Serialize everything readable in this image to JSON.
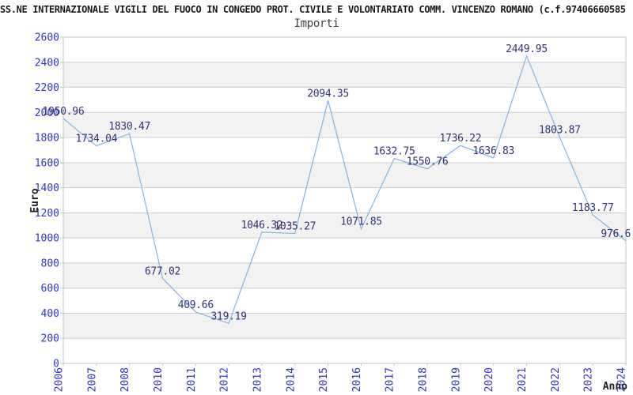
{
  "chart_data": {
    "type": "line",
    "title": "SS.NE INTERNAZIONALE VIGILI DEL FUOCO IN CONGEDO PROT. CIVILE E VOLONTARIATO COMM. VINCENZO ROMANO (c.f.97406660585",
    "subtitle": "Importi",
    "xlabel": "Anno",
    "ylabel": "Euro",
    "categories": [
      "2006",
      "2007",
      "2008",
      "2010",
      "2011",
      "2012",
      "2013",
      "2014",
      "2015",
      "2016",
      "2017",
      "2018",
      "2019",
      "2020",
      "2021",
      "2022",
      "2023",
      "2024"
    ],
    "values": [
      1950.96,
      1734.04,
      1830.47,
      677.02,
      409.66,
      319.19,
      1046.32,
      1035.27,
      2094.35,
      1071.85,
      1632.75,
      1550.76,
      1736.22,
      1636.83,
      2449.95,
      1803.87,
      1183.77,
      976.6
    ],
    "point_labels": [
      "1950.96",
      "1734.04",
      "1830.47",
      "677.02",
      "409.66",
      "319.19",
      "1046.32",
      "1035.27",
      "2094.35",
      "1071.85",
      "1632.75",
      "1550.76",
      "1736.22",
      "1636.83",
      "2449.95",
      "1803.87",
      "1183.77",
      "976.6"
    ],
    "ylim": [
      0,
      2600
    ],
    "ytick_step": 200,
    "yticks": [
      0,
      200,
      400,
      600,
      800,
      1000,
      1200,
      1400,
      1600,
      1800,
      2000,
      2200,
      2400,
      2600
    ],
    "grid": "horizontal-lines-with-alternating-bands",
    "legend_position": "none",
    "colors": {
      "series_line": "#82b4e8",
      "tick_label": "#3333cc",
      "point_label": "#333377",
      "band_fill": "#f2f2f2",
      "gridline": "#cdcdcd",
      "plot_border": "#c4c4c4",
      "title_text": "#1a1a1a",
      "subtitle_text": "#444444",
      "axis_title_text": "#222222"
    }
  }
}
